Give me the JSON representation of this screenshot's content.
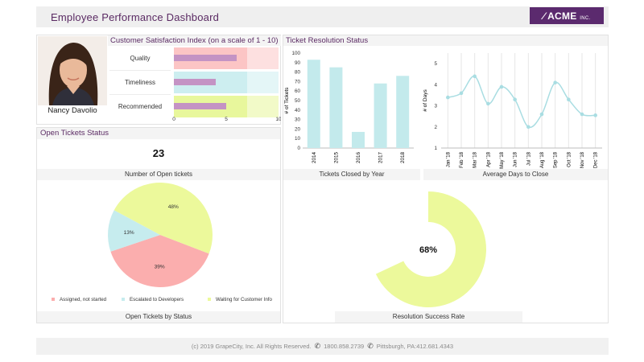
{
  "header": {
    "title": "Employee Performance Dashboard",
    "logo_main": "ACME",
    "logo_sub": "INC."
  },
  "employee": {
    "name": "Nancy Davolio"
  },
  "csi": {
    "title": "Customer Satisfaction Index (on a scale of 1 - 10)",
    "chart_data": {
      "type": "bar",
      "orientation": "horizontal",
      "categories": [
        "Quality",
        "Timeliness",
        "Recommended"
      ],
      "values": [
        6,
        4,
        5
      ],
      "xlim": [
        0,
        10
      ],
      "xticks": [
        0,
        5,
        10
      ],
      "bands": [
        {
          "ranges": [
            [
              0,
              7,
              "#fcc5c5"
            ],
            [
              7,
              10,
              "#fde0e0"
            ]
          ]
        },
        {
          "ranges": [
            [
              0,
              7,
              "#cdeef0"
            ],
            [
              7,
              10,
              "#e4f6f7"
            ]
          ]
        },
        {
          "ranges": [
            [
              0,
              7,
              "#e8f79c"
            ],
            [
              7,
              10,
              "#f2fac8"
            ]
          ]
        }
      ],
      "bar_color": "#c493c4"
    }
  },
  "tickets": {
    "title": "Ticket Resolution Status",
    "closed_caption": "Tickets Closed by Year",
    "avg_caption": "Average Days to Close",
    "success_caption": "Resolution Success Rate",
    "closed_chart": {
      "type": "bar",
      "categories": [
        "2014",
        "2015",
        "2016",
        "2017",
        "2018"
      ],
      "values": [
        93,
        85,
        17,
        68,
        76
      ],
      "ylabel": "# of Tickets",
      "ylim": [
        0,
        100
      ],
      "yticks": [
        0,
        10,
        20,
        30,
        40,
        50,
        60,
        70,
        80,
        90,
        100
      ],
      "color": "#c3eaec"
    },
    "avg_chart": {
      "type": "line",
      "categories": [
        "Jan '18",
        "Feb '18",
        "Mar '18",
        "Apr '18",
        "May '18",
        "Jun '18",
        "Jul '18",
        "Aug '18",
        "Sep '18",
        "Oct '18",
        "Nov '18",
        "Dec '18"
      ],
      "values": [
        3.4,
        3.6,
        4.4,
        3.1,
        3.9,
        3.3,
        2.0,
        2.6,
        4.1,
        3.3,
        2.6,
        2.55
      ],
      "ylabel": "# of Days",
      "ylim": [
        1,
        5.5
      ],
      "yticks": [
        1,
        2,
        3,
        4,
        5
      ],
      "color": "#a9dde2"
    },
    "success_chart": {
      "type": "pie",
      "value": 68,
      "label": "68%",
      "color": "#ecf99b"
    }
  },
  "open": {
    "title": "Open Tickets Status",
    "count": "23",
    "count_caption": "Number of Open tickets",
    "status_caption": "Open Tickets by Status",
    "pie_chart": {
      "type": "pie",
      "slices": [
        {
          "name": "Assigned, not started",
          "value": 39,
          "label": "39%",
          "color": "#fbaeae"
        },
        {
          "name": "Escalated to Developers",
          "value": 13,
          "label": "13%",
          "color": "#c6ecee"
        },
        {
          "name": "Waiting for Customer Info",
          "value": 48,
          "label": "48%",
          "color": "#ecf99b"
        }
      ]
    }
  },
  "footer": {
    "copyright": "(c) 2019 GrapeCity, Inc. All Rights Reserved.",
    "phone": "1800.858.2739",
    "address": "Pittsburgh, PA:412.681.4343",
    "phone_icon": "phone-icon"
  }
}
